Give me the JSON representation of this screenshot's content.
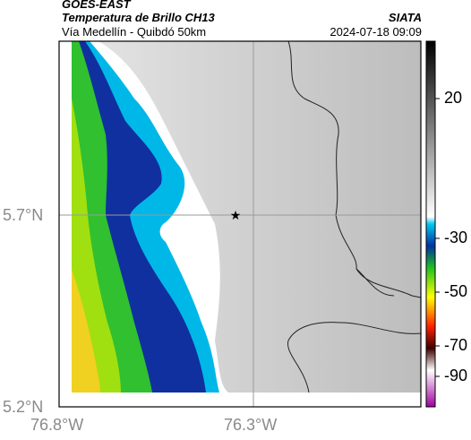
{
  "header": {
    "satellite": "GOES-EAST",
    "product": "Temperatura de Brillo CH13",
    "region": "Vía Medellín - Quibdó 50km",
    "brand": "SIATA",
    "datetime": "2024-07-18 09:09"
  },
  "axes": {
    "lat_ticks": [
      "5.7°N",
      "5.2°N"
    ],
    "lon_ticks": [
      "76.8°W",
      "76.3°W"
    ]
  },
  "colorbar": {
    "ticks": [
      "20",
      "-30",
      "-50",
      "-70",
      "-90"
    ]
  },
  "marker": {
    "symbol": "★"
  },
  "colors": {
    "cold_blue": "#1030a0",
    "cyan": "#00b8e8",
    "green": "#30c030",
    "yellow": "#f0d020"
  }
}
